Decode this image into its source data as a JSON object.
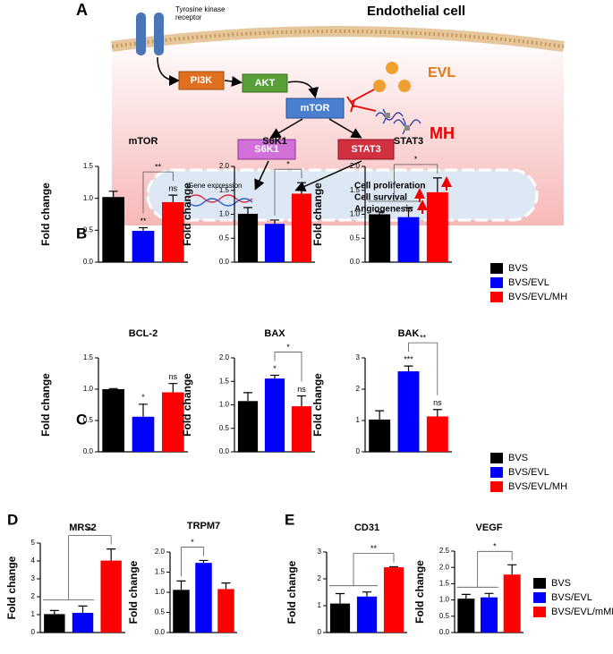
{
  "diagram": {
    "panel": "A",
    "receptor": "Tyrosine kinase receptor",
    "cell": "Endothelial cell",
    "nodes": [
      "PI3K",
      "AKT",
      "mTOR",
      "S6K1",
      "STAT3"
    ],
    "inhibitors": [
      "EVL",
      "MH"
    ],
    "nucleus": {
      "label": "Gene expression",
      "effects": [
        "Cell proliferation",
        "Cell survival",
        "Angiogenesis"
      ]
    }
  },
  "chart_data": [
    {
      "type": "bar",
      "panel": "B",
      "title": "mTOR",
      "ylabel": "Fold change",
      "colors": [
        "#000000",
        "#0000ff",
        "#ff0000"
      ],
      "values": [
        1.02,
        0.49,
        0.94
      ],
      "errors": [
        0.09,
        0.05,
        0.11
      ],
      "significance": [
        null,
        "**",
        "ns"
      ],
      "comparisons": [
        {
          "left": [
            1
          ],
          "right": [
            2
          ],
          "label": "**"
        }
      ],
      "ylim": [
        0,
        1.5
      ],
      "yticks": [
        {
          "value": 0,
          "label": "0.0"
        },
        {
          "value": 0.5,
          "label": "0.5"
        },
        {
          "value": 1,
          "label": "1.0"
        },
        {
          "value": 1.5,
          "label": "1.5"
        }
      ]
    },
    {
      "type": "bar",
      "title": "S6K1",
      "ylabel": "Fold change",
      "colors": [
        "#000000",
        "#0000ff",
        "#ff0000"
      ],
      "values": [
        1.01,
        0.8,
        1.43
      ],
      "errors": [
        0.13,
        0.08,
        0.23
      ],
      "significance": [
        null,
        null,
        null
      ],
      "comparisons": [
        {
          "left": [
            1
          ],
          "right": [
            2
          ],
          "label": "*"
        }
      ],
      "ylim": [
        0,
        2
      ],
      "yticks": [
        {
          "value": 0,
          "label": "0.0"
        },
        {
          "value": 0.5,
          "label": "0.5"
        },
        {
          "value": 1,
          "label": "1.0"
        },
        {
          "value": 1.5,
          "label": "1.5"
        },
        {
          "value": 2,
          "label": "2.0"
        }
      ]
    },
    {
      "type": "bar",
      "title": "STAT3",
      "ylabel": "Fold change",
      "colors": [
        "#000000",
        "#0000ff",
        "#ff0000"
      ],
      "values": [
        1.0,
        0.94,
        1.46
      ],
      "errors": [
        0.05,
        0.2,
        0.3
      ],
      "significance": [
        null,
        null,
        null
      ],
      "comparisons": [
        {
          "left": [
            0,
            1
          ],
          "right": [
            2
          ],
          "label": "*"
        }
      ],
      "ylim": [
        0,
        2
      ],
      "yticks": [
        {
          "value": 0,
          "label": "0.0"
        },
        {
          "value": 0.5,
          "label": "0.5"
        },
        {
          "value": 1,
          "label": "1.0"
        },
        {
          "value": 1.5,
          "label": "1.5"
        },
        {
          "value": 2,
          "label": "2.0"
        }
      ],
      "legend": [
        {
          "name": "BVS",
          "color": "#000000"
        },
        {
          "name": "BVS/EVL",
          "color": "#0000ff"
        },
        {
          "name": "BVS/EVL/MH",
          "color": "#ff0000"
        }
      ]
    },
    {
      "type": "bar",
      "panel": "C",
      "title": "BCL-2",
      "ylabel": "Fold change",
      "colors": [
        "#000000",
        "#0000ff",
        "#ff0000"
      ],
      "values": [
        1.0,
        0.56,
        0.95
      ],
      "errors": [
        0.01,
        0.2,
        0.14
      ],
      "significance": [
        null,
        "*",
        "ns"
      ],
      "comparisons": [],
      "ylim": [
        0,
        1.5
      ],
      "yticks": [
        {
          "value": 0,
          "label": "0.0"
        },
        {
          "value": 0.5,
          "label": "0.5"
        },
        {
          "value": 1,
          "label": "1.0"
        },
        {
          "value": 1.5,
          "label": "1.5"
        }
      ]
    },
    {
      "type": "bar",
      "title": "BAX",
      "ylabel": "Fold change",
      "colors": [
        "#000000",
        "#0000ff",
        "#ff0000"
      ],
      "values": [
        1.08,
        1.56,
        0.97
      ],
      "errors": [
        0.18,
        0.07,
        0.22
      ],
      "significance": [
        null,
        "*",
        "ns"
      ],
      "comparisons": [
        {
          "left": [
            1
          ],
          "right": [
            2
          ],
          "label": "*"
        }
      ],
      "ylim": [
        0,
        2
      ],
      "yticks": [
        {
          "value": 0,
          "label": "0.0"
        },
        {
          "value": 0.5,
          "label": "0.5"
        },
        {
          "value": 1,
          "label": "1.0"
        },
        {
          "value": 1.5,
          "label": "1.5"
        },
        {
          "value": 2,
          "label": "2.0"
        }
      ]
    },
    {
      "type": "bar",
      "title": "BAK",
      "ylabel": "Fold change",
      "colors": [
        "#000000",
        "#0000ff",
        "#ff0000"
      ],
      "values": [
        1.03,
        2.57,
        1.13
      ],
      "errors": [
        0.28,
        0.17,
        0.22
      ],
      "significance": [
        null,
        "***",
        "ns"
      ],
      "comparisons": [
        {
          "left": [
            1
          ],
          "right": [
            2
          ],
          "label": "**"
        }
      ],
      "ylim": [
        0,
        3
      ],
      "yticks": [
        0,
        1,
        2,
        3
      ],
      "legend": [
        {
          "name": "BVS",
          "color": "#000000"
        },
        {
          "name": "BVS/EVL",
          "color": "#0000ff"
        },
        {
          "name": "BVS/EVL/MH",
          "color": "#ff0000"
        }
      ]
    },
    {
      "type": "bar",
      "panel": "D",
      "title": "MRS2",
      "ylabel": "Fold change",
      "colors": [
        "#000000",
        "#0000ff",
        "#ff0000"
      ],
      "values": [
        1.03,
        1.1,
        4.02
      ],
      "errors": [
        0.2,
        0.38,
        0.65
      ],
      "significance": [
        null,
        null,
        null
      ],
      "comparisons": [
        {
          "left": [
            0,
            1
          ],
          "right": [
            2
          ],
          "label": "**"
        }
      ],
      "ylim": [
        0,
        5
      ],
      "yticks": [
        0,
        1,
        2,
        3,
        4,
        5
      ]
    },
    {
      "type": "bar",
      "title": "TRPM7",
      "ylabel": "Fold change",
      "colors": [
        "#000000",
        "#0000ff",
        "#ff0000"
      ],
      "values": [
        1.06,
        1.73,
        1.08
      ],
      "errors": [
        0.22,
        0.06,
        0.15
      ],
      "significance": [
        null,
        null,
        null
      ],
      "comparisons": [
        {
          "left": [
            0
          ],
          "right": [
            1
          ],
          "label": "*"
        }
      ],
      "ylim": [
        0,
        2
      ],
      "yticks": [
        {
          "value": 0,
          "label": "0.0"
        },
        {
          "value": 0.5,
          "label": "0.5"
        },
        {
          "value": 1,
          "label": "1.0"
        },
        {
          "value": 1.5,
          "label": "1.5"
        },
        {
          "value": 2,
          "label": "2.0"
        }
      ]
    },
    {
      "type": "bar",
      "panel": "E",
      "title": "CD31",
      "ylabel": "Fold change",
      "colors": [
        "#000000",
        "#0000ff",
        "#ff0000"
      ],
      "values": [
        1.08,
        1.34,
        2.43
      ],
      "errors": [
        0.37,
        0.17,
        0.02
      ],
      "significance": [
        null,
        null,
        null
      ],
      "comparisons": [
        {
          "left": [
            0,
            1
          ],
          "right": [
            2
          ],
          "label": "**"
        }
      ],
      "ylim": [
        0,
        3
      ],
      "yticks": [
        0,
        1,
        2,
        3
      ]
    },
    {
      "type": "bar",
      "title": "VEGF",
      "ylabel": "Fold change",
      "colors": [
        "#000000",
        "#0000ff",
        "#ff0000"
      ],
      "values": [
        1.04,
        1.08,
        1.78
      ],
      "errors": [
        0.13,
        0.12,
        0.3
      ],
      "significance": [
        null,
        null,
        null
      ],
      "comparisons": [
        {
          "left": [
            0,
            1
          ],
          "right": [
            2
          ],
          "label": "*"
        }
      ],
      "ylim": [
        0,
        2.5
      ],
      "yticks": [
        {
          "value": 0,
          "label": "0.0"
        },
        {
          "value": 0.5,
          "label": "0.5"
        },
        {
          "value": 1,
          "label": "1.0"
        },
        {
          "value": 1.5,
          "label": "1.5"
        },
        {
          "value": 2,
          "label": "2.0"
        },
        {
          "value": 2.5,
          "label": "2.5"
        }
      ],
      "legend": [
        {
          "name": "BVS",
          "color": "#000000"
        },
        {
          "name": "BVS/EVL",
          "color": "#0000ff"
        },
        {
          "name": "BVS/EVL/mMH",
          "color": "#ff0000"
        }
      ]
    }
  ]
}
